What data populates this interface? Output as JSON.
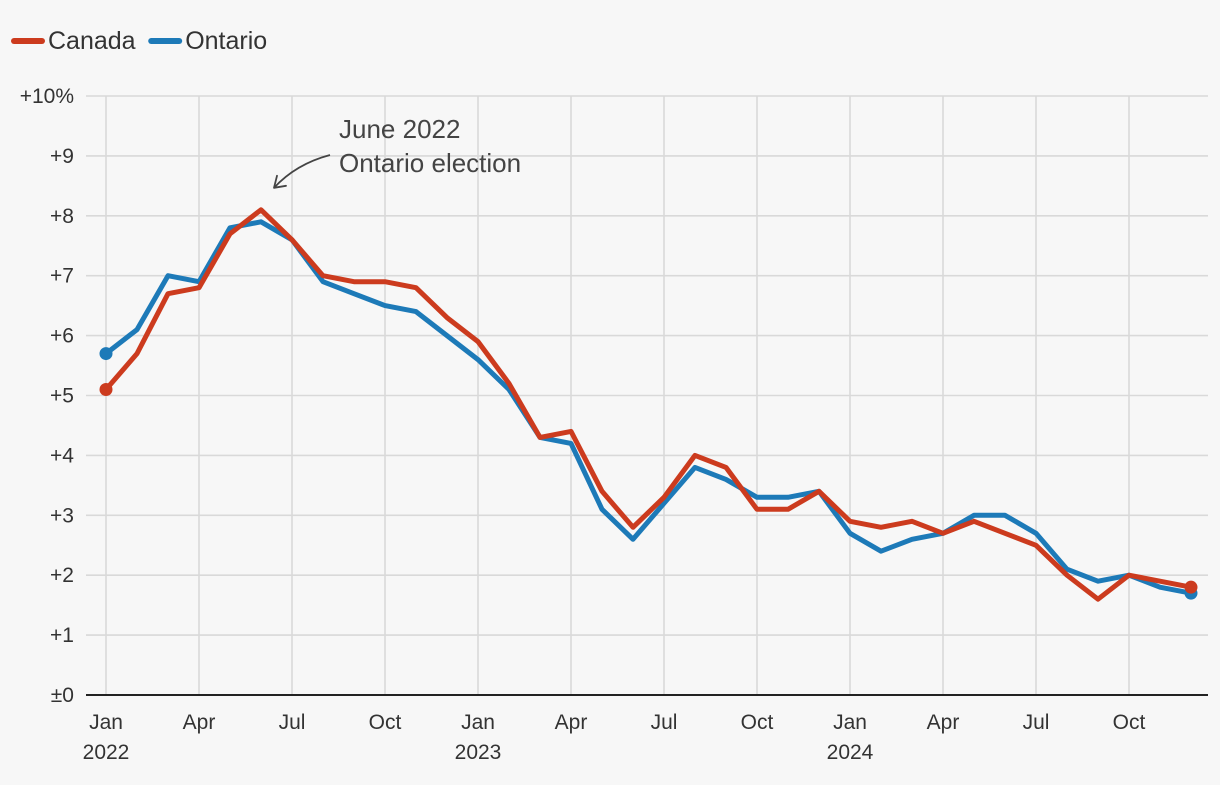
{
  "chart_data": {
    "type": "line",
    "title": "",
    "xlabel": "",
    "ylabel": "",
    "legend": {
      "placement": "top-left"
    },
    "grid": true,
    "ylim": [
      0,
      10
    ],
    "y_ticks": [
      0,
      1,
      2,
      3,
      4,
      5,
      6,
      7,
      8,
      9,
      10
    ],
    "y_tick_labels": [
      "±0",
      "+1",
      "+2",
      "+3",
      "+4",
      "+5",
      "+6",
      "+7",
      "+8",
      "+9",
      "+10%"
    ],
    "x": [
      "2022-01",
      "2022-02",
      "2022-03",
      "2022-04",
      "2022-05",
      "2022-06",
      "2022-07",
      "2022-08",
      "2022-09",
      "2022-10",
      "2022-11",
      "2022-12",
      "2023-01",
      "2023-02",
      "2023-03",
      "2023-04",
      "2023-05",
      "2023-06",
      "2023-07",
      "2023-08",
      "2023-09",
      "2023-10",
      "2023-11",
      "2023-12",
      "2024-01",
      "2024-02",
      "2024-03",
      "2024-04",
      "2024-05",
      "2024-06",
      "2024-07",
      "2024-08",
      "2024-09",
      "2024-10",
      "2024-11",
      "2024-12"
    ],
    "x_ticks": [
      {
        "month": "2022-01",
        "label": "Jan",
        "year": "2022"
      },
      {
        "month": "2022-04",
        "label": "Apr",
        "year": ""
      },
      {
        "month": "2022-07",
        "label": "Jul",
        "year": ""
      },
      {
        "month": "2022-10",
        "label": "Oct",
        "year": ""
      },
      {
        "month": "2023-01",
        "label": "Jan",
        "year": "2023"
      },
      {
        "month": "2023-04",
        "label": "Apr",
        "year": ""
      },
      {
        "month": "2023-07",
        "label": "Jul",
        "year": ""
      },
      {
        "month": "2023-10",
        "label": "Oct",
        "year": ""
      },
      {
        "month": "2024-01",
        "label": "Jan",
        "year": "2024"
      },
      {
        "month": "2024-04",
        "label": "Apr",
        "year": ""
      },
      {
        "month": "2024-07",
        "label": "Jul",
        "year": ""
      },
      {
        "month": "2024-10",
        "label": "Oct",
        "year": ""
      }
    ],
    "series": [
      {
        "name": "Canada",
        "color": "#cc3b1e",
        "values": [
          5.1,
          5.7,
          6.7,
          6.8,
          7.7,
          8.1,
          7.6,
          7.0,
          6.9,
          6.9,
          6.8,
          6.3,
          5.9,
          5.2,
          4.3,
          4.4,
          3.4,
          2.8,
          3.3,
          4.0,
          3.8,
          3.1,
          3.1,
          3.4,
          2.9,
          2.8,
          2.9,
          2.7,
          2.9,
          2.7,
          2.5,
          2.0,
          1.6,
          2.0,
          1.9,
          1.8
        ]
      },
      {
        "name": "Ontario",
        "color": "#1d7ab8",
        "values": [
          5.7,
          6.1,
          7.0,
          6.9,
          7.8,
          7.9,
          7.6,
          6.9,
          6.7,
          6.5,
          6.4,
          6.0,
          5.6,
          5.1,
          4.3,
          4.2,
          3.1,
          2.6,
          3.2,
          3.8,
          3.6,
          3.3,
          3.3,
          3.4,
          2.7,
          2.4,
          2.6,
          2.7,
          3.0,
          3.0,
          2.7,
          2.1,
          1.9,
          2.0,
          1.8,
          1.7
        ]
      }
    ],
    "annotations": [
      {
        "text_lines": [
          "June 2022",
          "Ontario election"
        ],
        "target_month": "2022-06",
        "target_value": 8.1
      }
    ]
  }
}
